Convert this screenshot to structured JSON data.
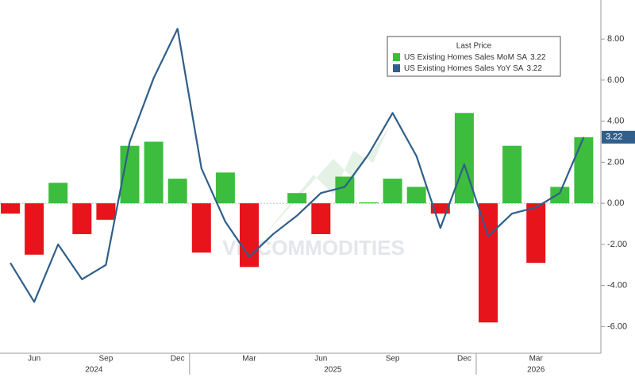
{
  "chart_data": {
    "type": "bar-line",
    "categories": [
      null,
      "Jun",
      null,
      null,
      "Sep",
      null,
      null,
      "Dec",
      null,
      null,
      "Mar",
      null,
      null,
      "Jun",
      null,
      null,
      "Sep",
      null,
      null,
      "Dec",
      null,
      null,
      "Mar",
      null,
      null
    ],
    "years": [
      "2024",
      "2025",
      "2026"
    ],
    "legend_title": "Last Price",
    "series": [
      {
        "name": "US Existing Homes Sales MoM SA",
        "type": "bar",
        "color": "#3dbd3d",
        "negative_color": "#e8141b",
        "values": [
          -0.5,
          -2.5,
          1.0,
          -1.5,
          -0.8,
          2.8,
          3.0,
          1.2,
          -2.4,
          1.5,
          -3.1,
          0,
          0.5,
          -1.5,
          1.3,
          0.05,
          1.2,
          0.8,
          -0.5,
          4.4,
          -5.8,
          2.8,
          -2.9,
          0.8,
          3.22
        ]
      },
      {
        "name": "US Existing Homes Sales YoY SA",
        "type": "line",
        "color": "#2f5f8a",
        "values": [
          -2.9,
          -4.8,
          -2.0,
          -3.7,
          -3.0,
          3.0,
          6.1,
          8.5,
          1.7,
          -0.9,
          -2.6,
          -1.5,
          -0.6,
          0.5,
          0.8,
          2.4,
          4.4,
          2.3,
          -1.2,
          1.9,
          -1.6,
          -0.5,
          -0.2,
          0.5,
          3.22
        ]
      }
    ],
    "ylim": [
      -7.3,
      9.9
    ],
    "yticks": [
      {
        "value": 8,
        "label": "8.00"
      },
      {
        "value": 6,
        "label": "6.00"
      },
      {
        "value": 4,
        "label": "4.00"
      },
      {
        "value": 2,
        "label": "2.00"
      },
      {
        "value": 0,
        "label": "0.00"
      },
      {
        "value": -2,
        "label": "-2.00"
      },
      {
        "value": -4,
        "label": "-4.00"
      },
      {
        "value": -6,
        "label": "-6.00"
      }
    ],
    "watermark": "VH COMMODITIES"
  }
}
